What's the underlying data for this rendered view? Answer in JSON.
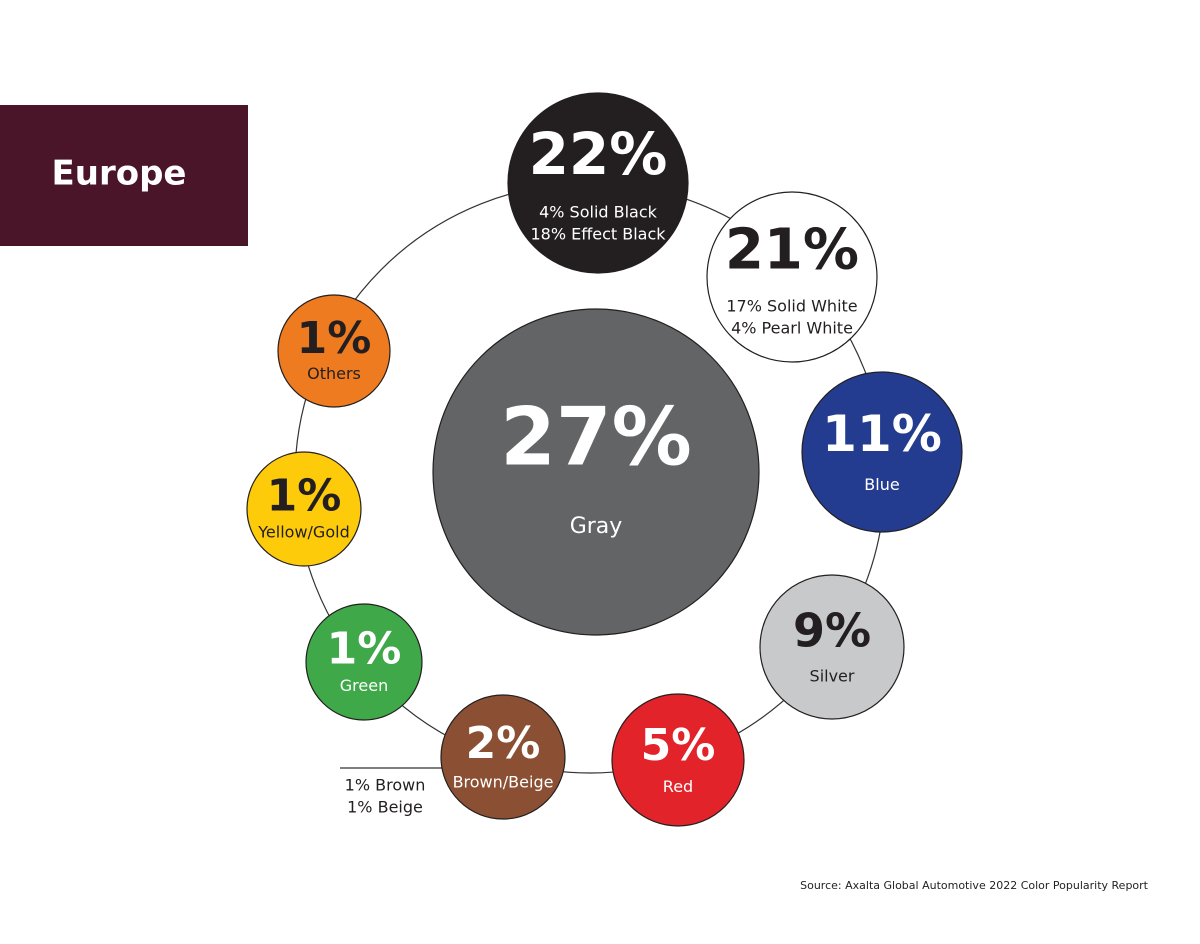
{
  "chart_data": {
    "type": "bubble",
    "title": "Europe",
    "categories": [
      "Gray",
      null,
      null,
      "Blue",
      "Silver",
      "Red",
      "Brown/Beige",
      "Green",
      "Yellow/Gold",
      "Others"
    ],
    "values": [
      27,
      22,
      21,
      11,
      9,
      5,
      2,
      1,
      1,
      1
    ],
    "value_labels": [
      "27%",
      "22%",
      "21%",
      "11%",
      "9%",
      "5%",
      "2%",
      "1%",
      "1%",
      "1%"
    ],
    "colors": [
      "#636466",
      "#231f20",
      "#ffffff",
      "#243c8f",
      "#c8c9cb",
      "#e2232a",
      "#8b5034",
      "#3fa848",
      "#fecb0a",
      "#ef7b21"
    ],
    "details": [
      [],
      [
        "4% Solid Black",
        "18% Effect Black"
      ],
      [
        "17% Solid White",
        "4% Pearl White"
      ],
      [],
      [],
      [],
      [
        "1% Brown",
        "1% Beige"
      ],
      [],
      [],
      []
    ],
    "source": "Source: Axalta Global Automotive 2022 Color Popularity Report"
  }
}
